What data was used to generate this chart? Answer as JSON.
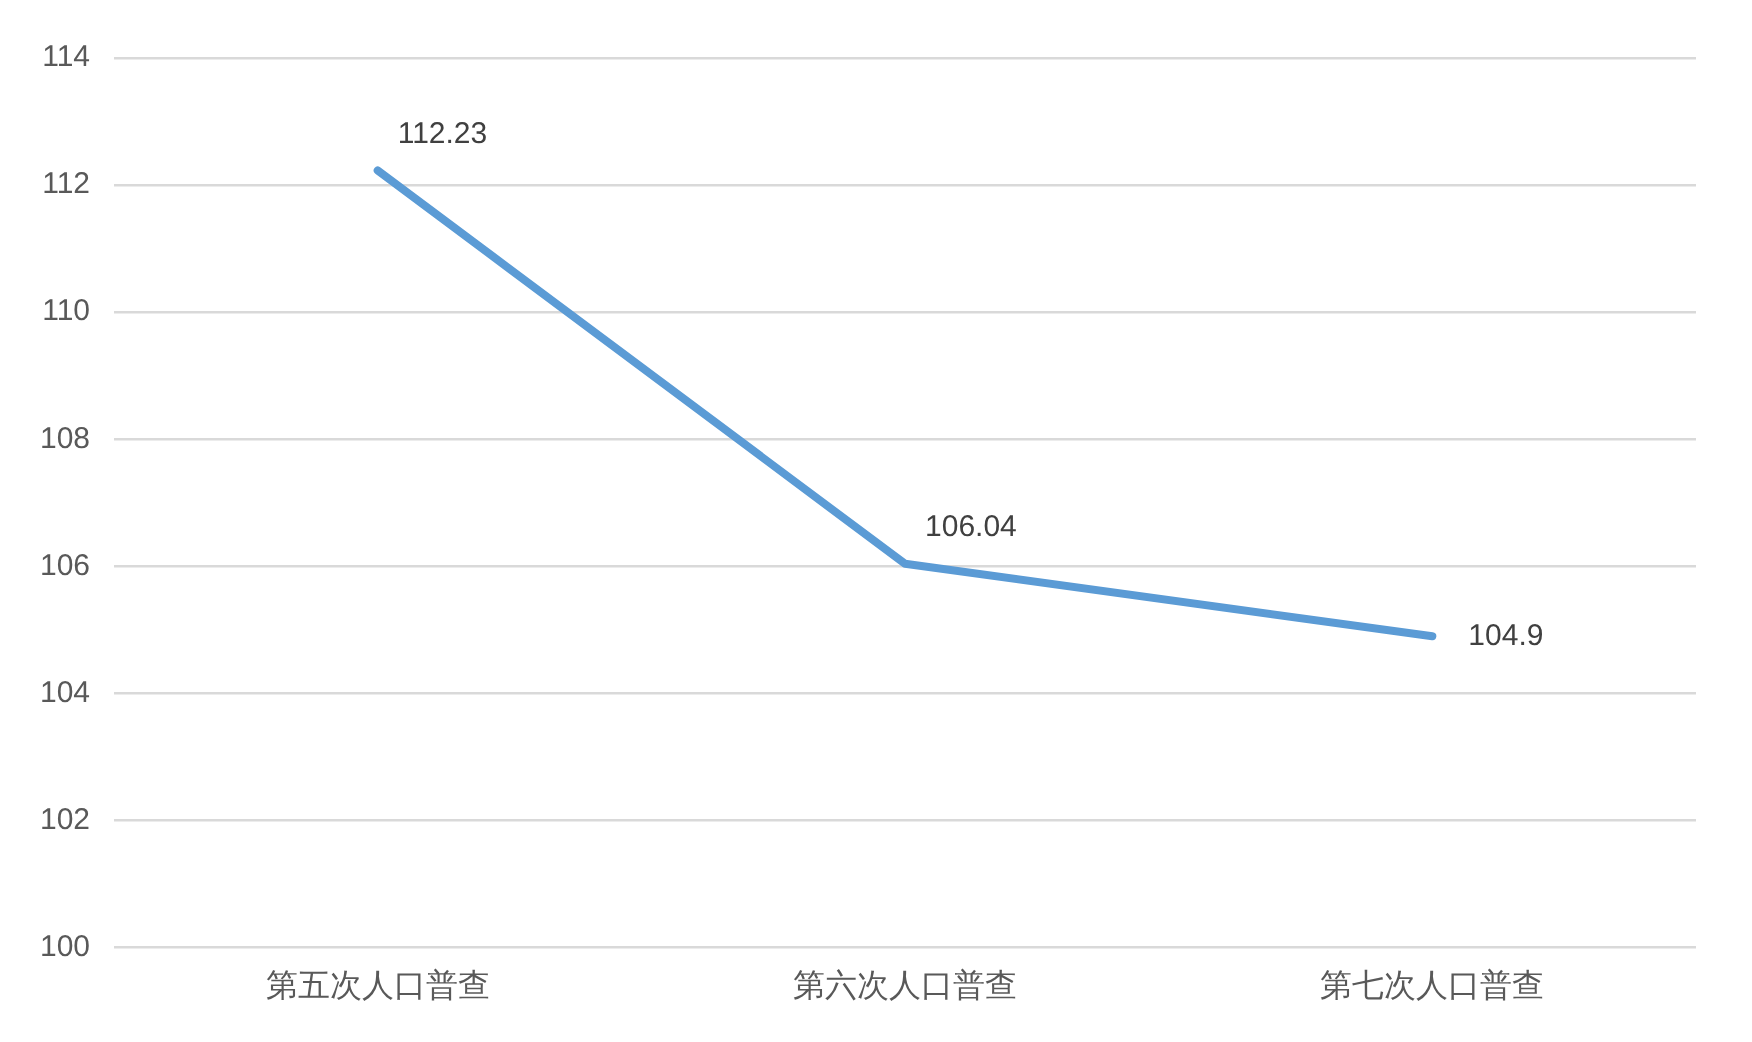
{
  "chart_data": {
    "type": "line",
    "categories": [
      "第五次人口普查",
      "第六次人口普查",
      "第七次人口普查"
    ],
    "series": [
      {
        "color": "#5b9bd5",
        "values": [
          112.23,
          106.04,
          104.9
        ]
      }
    ],
    "ylim": [
      100,
      114
    ],
    "yticks": [
      100,
      102,
      104,
      106,
      108,
      110,
      112,
      114
    ],
    "grid": "y",
    "marker": "none",
    "line_style": "solid",
    "data_labels": true
  }
}
